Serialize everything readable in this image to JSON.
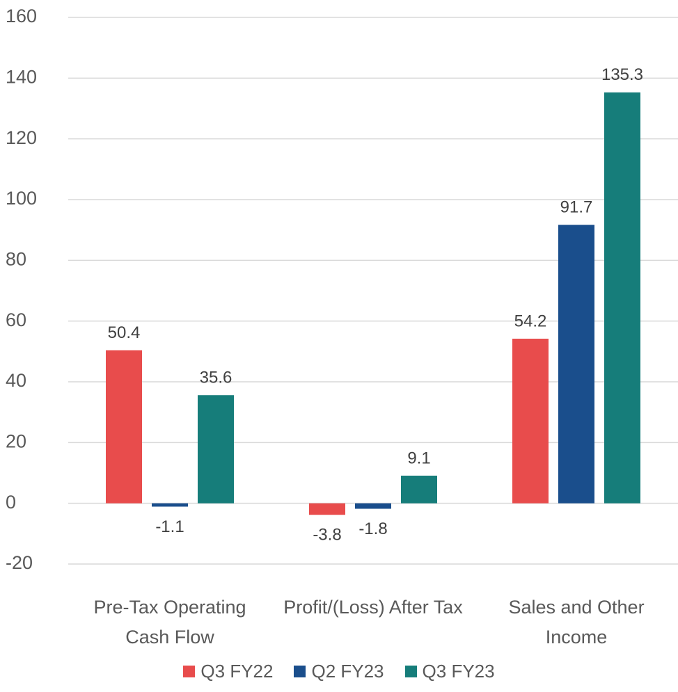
{
  "chart_data": {
    "type": "bar",
    "categories": [
      "Pre-Tax Operating Cash Flow",
      "Profit/(Loss) After Tax",
      "Sales and Other Income"
    ],
    "series": [
      {
        "name": "Q3 FY22",
        "color": "#e84c4c",
        "values": [
          50.4,
          -3.8,
          54.2
        ]
      },
      {
        "name": "Q2 FY23",
        "color": "#1a4e8c",
        "values": [
          -1.1,
          -1.8,
          91.7
        ]
      },
      {
        "name": "Q3 FY23",
        "color": "#167d7a",
        "values": [
          35.6,
          9.1,
          135.3
        ]
      }
    ],
    "ylim": [
      -20,
      160
    ],
    "yticks": [
      -20,
      0,
      20,
      40,
      60,
      80,
      100,
      120,
      140,
      160
    ],
    "grid": true,
    "legend": "bottom"
  }
}
